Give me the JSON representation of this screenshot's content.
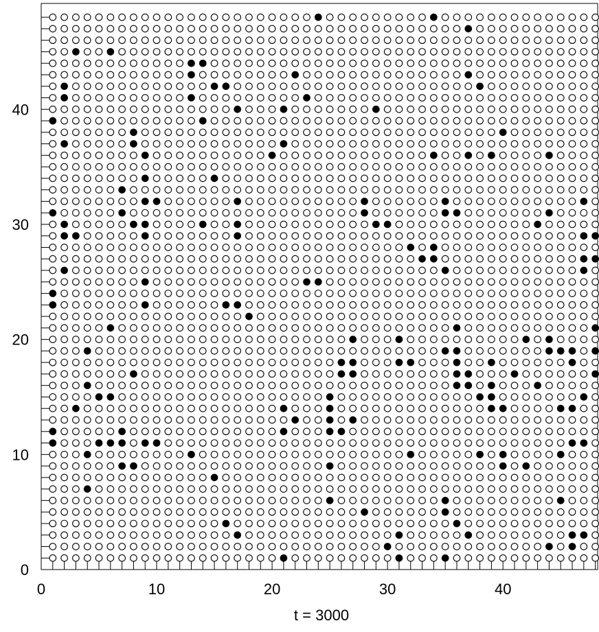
{
  "chart_data": {
    "type": "scatter",
    "title": "",
    "xlabel": "t = 3000",
    "ylabel": "",
    "xlim": [
      0,
      48
    ],
    "ylim": [
      0,
      49
    ],
    "xticks": [
      0,
      10,
      20,
      30,
      40
    ],
    "yticks": [
      0,
      10,
      20,
      30,
      40
    ],
    "grid": false,
    "legend": "none",
    "lattice": {
      "x_range": [
        1,
        48
      ],
      "y_range": [
        1,
        48
      ]
    },
    "series": [
      {
        "marker": "open-circle",
        "fill": "#ffffff",
        "stroke": "#000000",
        "values": "all remaining lattice sites"
      },
      {
        "marker": "filled-circle",
        "fill": "#000000",
        "points": [
          [
            24,
            48
          ],
          [
            34,
            48
          ],
          [
            37,
            47
          ],
          [
            3,
            45
          ],
          [
            6,
            45
          ],
          [
            13,
            44
          ],
          [
            14,
            44
          ],
          [
            13,
            43
          ],
          [
            22,
            43
          ],
          [
            37,
            43
          ],
          [
            2,
            42
          ],
          [
            15,
            42
          ],
          [
            16,
            42
          ],
          [
            38,
            42
          ],
          [
            2,
            41
          ],
          [
            13,
            41
          ],
          [
            23,
            41
          ],
          [
            17,
            40
          ],
          [
            21,
            40
          ],
          [
            29,
            40
          ],
          [
            1,
            39
          ],
          [
            14,
            39
          ],
          [
            8,
            38
          ],
          [
            40,
            38
          ],
          [
            2,
            37
          ],
          [
            8,
            37
          ],
          [
            21,
            37
          ],
          [
            9,
            36
          ],
          [
            20,
            36
          ],
          [
            34,
            36
          ],
          [
            37,
            36
          ],
          [
            39,
            36
          ],
          [
            44,
            36
          ],
          [
            9,
            34
          ],
          [
            15,
            34
          ],
          [
            7,
            33
          ],
          [
            9,
            32
          ],
          [
            10,
            32
          ],
          [
            17,
            32
          ],
          [
            28,
            32
          ],
          [
            35,
            32
          ],
          [
            47,
            32
          ],
          [
            1,
            31
          ],
          [
            7,
            31
          ],
          [
            28,
            31
          ],
          [
            35,
            31
          ],
          [
            36,
            31
          ],
          [
            44,
            31
          ],
          [
            2,
            30
          ],
          [
            8,
            30
          ],
          [
            9,
            30
          ],
          [
            14,
            30
          ],
          [
            17,
            30
          ],
          [
            29,
            30
          ],
          [
            30,
            30
          ],
          [
            43,
            30
          ],
          [
            2,
            29
          ],
          [
            3,
            29
          ],
          [
            9,
            29
          ],
          [
            17,
            29
          ],
          [
            47,
            29
          ],
          [
            48,
            29
          ],
          [
            32,
            28
          ],
          [
            34,
            28
          ],
          [
            33,
            27
          ],
          [
            34,
            27
          ],
          [
            47,
            27
          ],
          [
            48,
            27
          ],
          [
            2,
            26
          ],
          [
            35,
            26
          ],
          [
            47,
            26
          ],
          [
            9,
            25
          ],
          [
            23,
            25
          ],
          [
            24,
            25
          ],
          [
            1,
            24
          ],
          [
            1,
            23
          ],
          [
            9,
            23
          ],
          [
            16,
            23
          ],
          [
            17,
            23
          ],
          [
            18,
            22
          ],
          [
            6,
            21
          ],
          [
            36,
            21
          ],
          [
            48,
            21
          ],
          [
            27,
            20
          ],
          [
            31,
            20
          ],
          [
            42,
            20
          ],
          [
            44,
            20
          ],
          [
            4,
            19
          ],
          [
            35,
            19
          ],
          [
            36,
            19
          ],
          [
            44,
            19
          ],
          [
            45,
            19
          ],
          [
            46,
            19
          ],
          [
            48,
            19
          ],
          [
            26,
            18
          ],
          [
            27,
            18
          ],
          [
            31,
            18
          ],
          [
            32,
            18
          ],
          [
            36,
            18
          ],
          [
            39,
            18
          ],
          [
            46,
            18
          ],
          [
            8,
            17
          ],
          [
            26,
            17
          ],
          [
            27,
            17
          ],
          [
            36,
            17
          ],
          [
            37,
            17
          ],
          [
            41,
            17
          ],
          [
            48,
            17
          ],
          [
            4,
            16
          ],
          [
            36,
            16
          ],
          [
            37,
            16
          ],
          [
            39,
            16
          ],
          [
            43,
            16
          ],
          [
            5,
            15
          ],
          [
            6,
            15
          ],
          [
            25,
            15
          ],
          [
            38,
            15
          ],
          [
            39,
            15
          ],
          [
            47,
            15
          ],
          [
            3,
            14
          ],
          [
            21,
            14
          ],
          [
            25,
            14
          ],
          [
            39,
            14
          ],
          [
            40,
            14
          ],
          [
            45,
            14
          ],
          [
            46,
            14
          ],
          [
            22,
            13
          ],
          [
            25,
            13
          ],
          [
            27,
            13
          ],
          [
            1,
            12
          ],
          [
            7,
            12
          ],
          [
            21,
            12
          ],
          [
            25,
            12
          ],
          [
            26,
            12
          ],
          [
            1,
            11
          ],
          [
            5,
            11
          ],
          [
            6,
            11
          ],
          [
            7,
            11
          ],
          [
            9,
            11
          ],
          [
            10,
            11
          ],
          [
            46,
            11
          ],
          [
            47,
            11
          ],
          [
            4,
            10
          ],
          [
            13,
            10
          ],
          [
            32,
            10
          ],
          [
            38,
            10
          ],
          [
            40,
            10
          ],
          [
            45,
            10
          ],
          [
            7,
            9
          ],
          [
            8,
            9
          ],
          [
            25,
            9
          ],
          [
            40,
            9
          ],
          [
            42,
            9
          ],
          [
            15,
            8
          ],
          [
            4,
            7
          ],
          [
            25,
            6
          ],
          [
            35,
            6
          ],
          [
            45,
            6
          ],
          [
            28,
            5
          ],
          [
            35,
            5
          ],
          [
            16,
            4
          ],
          [
            36,
            4
          ],
          [
            17,
            3
          ],
          [
            31,
            3
          ],
          [
            37,
            3
          ],
          [
            46,
            3
          ],
          [
            47,
            3
          ],
          [
            30,
            2
          ],
          [
            44,
            2
          ],
          [
            46,
            2
          ],
          [
            21,
            1
          ],
          [
            31,
            1
          ],
          [
            35,
            1
          ]
        ]
      }
    ]
  }
}
